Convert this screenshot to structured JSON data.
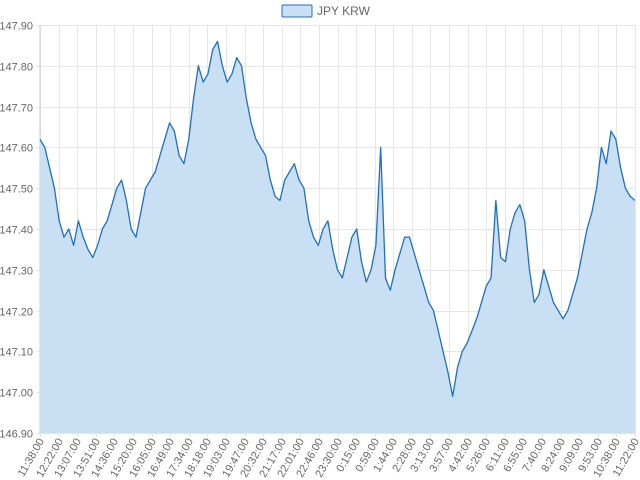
{
  "chart_data": {
    "type": "area",
    "title": "",
    "xlabel": "",
    "ylabel": "",
    "legend": {
      "position": "top",
      "entries": [
        {
          "label": "JPY KRW",
          "fill": "#c9dff4",
          "stroke": "#1f6fc5"
        }
      ]
    },
    "grid": true,
    "ylim": [
      146.9,
      147.9
    ],
    "y_ticks": [
      "146.90",
      "147.00",
      "147.10",
      "147.20",
      "147.30",
      "147.40",
      "147.50",
      "147.60",
      "147.70",
      "147.80",
      "147.90"
    ],
    "x_ticks": [
      "11:38:00",
      "12:22:00",
      "13:07:00",
      "13:51:00",
      "14:36:00",
      "15:20:00",
      "16:05:00",
      "16:49:00",
      "17:34:00",
      "18:18:00",
      "19:03:00",
      "19:47:00",
      "20:32:00",
      "21:17:00",
      "22:01:00",
      "22:46:00",
      "23:30:00",
      "0:15:00",
      "0:59:00",
      "1:44:00",
      "2:28:00",
      "3:13:00",
      "3:57:00",
      "4:42:00",
      "5:26:00",
      "6:11:00",
      "6:55:00",
      "7:40:00",
      "8:24:00",
      "9:09:00",
      "9:53:00",
      "10:38:00",
      "11:22:00"
    ],
    "series": [
      {
        "name": "JPY KRW",
        "color": "#1f6fc5",
        "fill": "#c9dff4",
        "values": [
          147.62,
          147.6,
          147.55,
          147.5,
          147.42,
          147.38,
          147.4,
          147.36,
          147.42,
          147.38,
          147.35,
          147.33,
          147.36,
          147.4,
          147.42,
          147.46,
          147.5,
          147.52,
          147.47,
          147.4,
          147.38,
          147.44,
          147.5,
          147.52,
          147.54,
          147.58,
          147.62,
          147.66,
          147.64,
          147.58,
          147.56,
          147.62,
          147.72,
          147.8,
          147.76,
          147.78,
          147.84,
          147.86,
          147.8,
          147.76,
          147.78,
          147.82,
          147.8,
          147.72,
          147.66,
          147.62,
          147.6,
          147.58,
          147.52,
          147.48,
          147.47,
          147.52,
          147.54,
          147.56,
          147.52,
          147.5,
          147.42,
          147.38,
          147.36,
          147.4,
          147.42,
          147.35,
          147.3,
          147.28,
          147.33,
          147.38,
          147.4,
          147.32,
          147.27,
          147.3,
          147.36,
          147.6,
          147.28,
          147.25,
          147.3,
          147.34,
          147.38,
          147.38,
          147.34,
          147.3,
          147.26,
          147.22,
          147.2,
          147.15,
          147.1,
          147.05,
          146.99,
          147.06,
          147.1,
          147.12,
          147.15,
          147.18,
          147.22,
          147.26,
          147.28,
          147.47,
          147.33,
          147.32,
          147.4,
          147.44,
          147.46,
          147.42,
          147.3,
          147.22,
          147.24,
          147.3,
          147.26,
          147.22,
          147.2,
          147.18,
          147.2,
          147.24,
          147.28,
          147.34,
          147.4,
          147.44,
          147.5,
          147.6,
          147.56,
          147.64,
          147.62,
          147.55,
          147.5,
          147.48,
          147.47
        ]
      }
    ]
  }
}
